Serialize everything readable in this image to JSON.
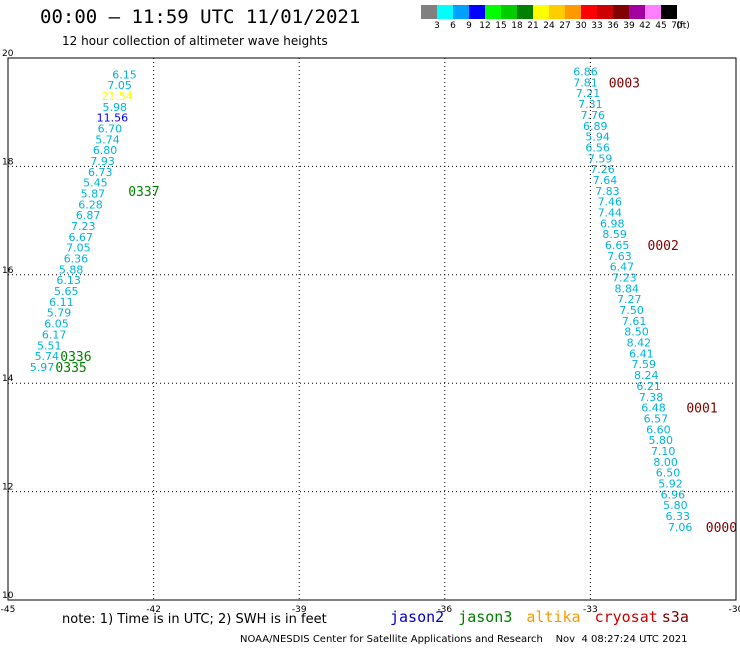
{
  "header": {
    "title": "00:00 – 11:59 UTC 11/01/2021",
    "subtitle": "12 hour collection of altimeter wave heights"
  },
  "legend": {
    "unit": "(ft)",
    "bins": [
      {
        "label": "3",
        "color": "#808080"
      },
      {
        "label": "6",
        "color": "#00ffff"
      },
      {
        "label": "9",
        "color": "#00a0ff"
      },
      {
        "label": "12",
        "color": "#0000ff"
      },
      {
        "label": "15",
        "color": "#00ff00"
      },
      {
        "label": "18",
        "color": "#00cc00"
      },
      {
        "label": "21",
        "color": "#008000"
      },
      {
        "label": "24",
        "color": "#ffff00"
      },
      {
        "label": "27",
        "color": "#ffcc00"
      },
      {
        "label": "30",
        "color": "#ff9900"
      },
      {
        "label": "33",
        "color": "#ff0000"
      },
      {
        "label": "36",
        "color": "#cc0000"
      },
      {
        "label": "39",
        "color": "#800000"
      },
      {
        "label": "42",
        "color": "#a000a0"
      },
      {
        "label": "45",
        "color": "#ff80ff"
      },
      {
        "label": "70",
        "color": "#000000"
      }
    ]
  },
  "footer": {
    "note": "note: 1) Time is in UTC; 2) SWH is in feet",
    "satellites": [
      {
        "name": "jason2",
        "color": "#0000cc"
      },
      {
        "name": "jason3",
        "color": "#008000"
      },
      {
        "name": "altika",
        "color": "#ff9900"
      },
      {
        "name": "cryosat",
        "color": "#cc0000"
      },
      {
        "name": "s3a",
        "color": "#800000"
      }
    ],
    "credit": "NOAA/NESDIS Center for Satellite Applications and Research    Nov  4 08:27:24 UTC 2021"
  },
  "chart_data": {
    "type": "scatter",
    "title": "12 hour collection of altimeter wave heights",
    "xlim": [
      -45,
      -30
    ],
    "ylim": [
      10,
      20
    ],
    "x_ticks": [
      "-45",
      "-42",
      "-39",
      "-36",
      "-33",
      "-30"
    ],
    "y_ticks": [
      "10",
      "12",
      "14",
      "16",
      "18",
      "20"
    ],
    "grid": true,
    "grid_color": "#000000",
    "series": [
      {
        "name": "jason3",
        "color": "#00b4dc",
        "points": [
          {
            "x": -42.6,
            "y": 19.7,
            "v": "6.15",
            "c": "#00b4dc"
          },
          {
            "x": -42.7,
            "y": 19.5,
            "v": "7.05",
            "c": "#00b4dc"
          },
          {
            "x": -42.75,
            "y": 19.3,
            "v": "21.54",
            "c": "#ffff00"
          },
          {
            "x": -42.8,
            "y": 19.1,
            "v": "5.98",
            "c": "#00b4dc"
          },
          {
            "x": -42.85,
            "y": 18.9,
            "v": "11.56",
            "c": "#0000ff"
          },
          {
            "x": -42.9,
            "y": 18.7,
            "v": "6.70",
            "c": "#00b4dc"
          },
          {
            "x": -42.95,
            "y": 18.5,
            "v": "5.74",
            "c": "#00b4dc"
          },
          {
            "x": -43.0,
            "y": 18.3,
            "v": "6.80",
            "c": "#00b4dc"
          },
          {
            "x": -43.05,
            "y": 18.1,
            "v": "7.93",
            "c": "#00b4dc"
          },
          {
            "x": -43.1,
            "y": 17.9,
            "v": "6.73",
            "c": "#00b4dc"
          },
          {
            "x": -43.2,
            "y": 17.7,
            "v": "5.45",
            "c": "#00b4dc"
          },
          {
            "x": -43.25,
            "y": 17.5,
            "v": "5.87",
            "c": "#00b4dc"
          },
          {
            "x": -43.3,
            "y": 17.3,
            "v": "6.28",
            "c": "#00b4dc"
          },
          {
            "x": -43.35,
            "y": 17.1,
            "v": "6.87",
            "c": "#00b4dc"
          },
          {
            "x": -43.45,
            "y": 16.9,
            "v": "7.23",
            "c": "#00b4dc"
          },
          {
            "x": -43.5,
            "y": 16.7,
            "v": "6.67",
            "c": "#00b4dc"
          },
          {
            "x": -43.55,
            "y": 16.5,
            "v": "7.05",
            "c": "#00b4dc"
          },
          {
            "x": -43.6,
            "y": 16.3,
            "v": "6.36",
            "c": "#00b4dc"
          },
          {
            "x": -43.7,
            "y": 16.1,
            "v": "5.88",
            "c": "#00b4dc"
          },
          {
            "x": -43.75,
            "y": 15.9,
            "v": "6.13",
            "c": "#00b4dc"
          },
          {
            "x": -43.8,
            "y": 15.7,
            "v": "5.65",
            "c": "#00b4dc"
          },
          {
            "x": -43.9,
            "y": 15.5,
            "v": "6.11",
            "c": "#00b4dc"
          },
          {
            "x": -43.95,
            "y": 15.3,
            "v": "5.79",
            "c": "#00b4dc"
          },
          {
            "x": -44.0,
            "y": 15.1,
            "v": "6.05",
            "c": "#00b4dc"
          },
          {
            "x": -44.05,
            "y": 14.9,
            "v": "6.17",
            "c": "#00b4dc"
          },
          {
            "x": -44.15,
            "y": 14.7,
            "v": "5.51",
            "c": "#00b4dc"
          },
          {
            "x": -44.2,
            "y": 14.5,
            "v": "5.74",
            "c": "#00b4dc"
          },
          {
            "x": -44.3,
            "y": 14.3,
            "v": "5.97",
            "c": "#00b4dc"
          }
        ]
      },
      {
        "name": "s3a",
        "color": "#00b4dc",
        "points": [
          {
            "x": -33.1,
            "y": 19.75,
            "v": "6.86",
            "c": "#00b4dc"
          },
          {
            "x": -33.1,
            "y": 19.55,
            "v": "7.81",
            "c": "#00b4dc"
          },
          {
            "x": -33.05,
            "y": 19.35,
            "v": "7.21",
            "c": "#00b4dc"
          },
          {
            "x": -33.0,
            "y": 19.15,
            "v": "7.31",
            "c": "#00b4dc"
          },
          {
            "x": -32.95,
            "y": 18.95,
            "v": "7.76",
            "c": "#00b4dc"
          },
          {
            "x": -32.9,
            "y": 18.75,
            "v": "6.89",
            "c": "#00b4dc"
          },
          {
            "x": -32.85,
            "y": 18.55,
            "v": "5.94",
            "c": "#00b4dc"
          },
          {
            "x": -32.85,
            "y": 18.35,
            "v": "6.56",
            "c": "#00b4dc"
          },
          {
            "x": -32.8,
            "y": 18.15,
            "v": "7.59",
            "c": "#00b4dc"
          },
          {
            "x": -32.75,
            "y": 17.95,
            "v": "7.26",
            "c": "#00b4dc"
          },
          {
            "x": -32.7,
            "y": 17.75,
            "v": "7.64",
            "c": "#00b4dc"
          },
          {
            "x": -32.65,
            "y": 17.55,
            "v": "7.83",
            "c": "#00b4dc"
          },
          {
            "x": -32.6,
            "y": 17.35,
            "v": "7.46",
            "c": "#00b4dc"
          },
          {
            "x": -32.6,
            "y": 17.15,
            "v": "7.44",
            "c": "#00b4dc"
          },
          {
            "x": -32.55,
            "y": 16.95,
            "v": "6.98",
            "c": "#00b4dc"
          },
          {
            "x": -32.5,
            "y": 16.75,
            "v": "8.59",
            "c": "#00b4dc"
          },
          {
            "x": -32.45,
            "y": 16.55,
            "v": "6.65",
            "c": "#00b4dc"
          },
          {
            "x": -32.4,
            "y": 16.35,
            "v": "7.63",
            "c": "#00b4dc"
          },
          {
            "x": -32.35,
            "y": 16.15,
            "v": "6.47",
            "c": "#00b4dc"
          },
          {
            "x": -32.3,
            "y": 15.95,
            "v": "7.23",
            "c": "#00b4dc"
          },
          {
            "x": -32.25,
            "y": 15.75,
            "v": "8.84",
            "c": "#00b4dc"
          },
          {
            "x": -32.2,
            "y": 15.55,
            "v": "7.27",
            "c": "#00b4dc"
          },
          {
            "x": -32.15,
            "y": 15.35,
            "v": "7.50",
            "c": "#00b4dc"
          },
          {
            "x": -32.1,
            "y": 15.15,
            "v": "7.61",
            "c": "#00b4dc"
          },
          {
            "x": -32.05,
            "y": 14.95,
            "v": "8.50",
            "c": "#00b4dc"
          },
          {
            "x": -32.0,
            "y": 14.75,
            "v": "8.42",
            "c": "#00b4dc"
          },
          {
            "x": -31.95,
            "y": 14.55,
            "v": "6.41",
            "c": "#00b4dc"
          },
          {
            "x": -31.9,
            "y": 14.35,
            "v": "7.59",
            "c": "#00b4dc"
          },
          {
            "x": -31.85,
            "y": 14.15,
            "v": "8.24",
            "c": "#00b4dc"
          },
          {
            "x": -31.8,
            "y": 13.95,
            "v": "6.21",
            "c": "#00b4dc"
          },
          {
            "x": -31.75,
            "y": 13.75,
            "v": "7.38",
            "c": "#00b4dc"
          },
          {
            "x": -31.7,
            "y": 13.55,
            "v": "6.48",
            "c": "#00b4dc"
          },
          {
            "x": -31.65,
            "y": 13.35,
            "v": "6.57",
            "c": "#00b4dc"
          },
          {
            "x": -31.6,
            "y": 13.15,
            "v": "6.60",
            "c": "#00b4dc"
          },
          {
            "x": -31.55,
            "y": 12.95,
            "v": "5.80",
            "c": "#00b4dc"
          },
          {
            "x": -31.5,
            "y": 12.75,
            "v": "7.10",
            "c": "#00b4dc"
          },
          {
            "x": -31.45,
            "y": 12.55,
            "v": "8.00",
            "c": "#00b4dc"
          },
          {
            "x": -31.4,
            "y": 12.35,
            "v": "6.50",
            "c": "#00b4dc"
          },
          {
            "x": -31.35,
            "y": 12.15,
            "v": "5.92",
            "c": "#00b4dc"
          },
          {
            "x": -31.3,
            "y": 11.95,
            "v": "6.96",
            "c": "#00b4dc"
          },
          {
            "x": -31.25,
            "y": 11.75,
            "v": "5.80",
            "c": "#00b4dc"
          },
          {
            "x": -31.2,
            "y": 11.55,
            "v": "6.33",
            "c": "#00b4dc"
          },
          {
            "x": -31.15,
            "y": 11.35,
            "v": "7.06",
            "c": "#00b4dc"
          }
        ]
      }
    ],
    "time_labels": [
      {
        "x": -32.3,
        "y": 19.55,
        "text": "0003",
        "color": "#800000"
      },
      {
        "x": -31.5,
        "y": 16.55,
        "text": "0002",
        "color": "#800000"
      },
      {
        "x": -30.7,
        "y": 13.55,
        "text": "0001",
        "color": "#800000"
      },
      {
        "x": -30.3,
        "y": 11.35,
        "text": "0000",
        "color": "#800000"
      },
      {
        "x": -42.2,
        "y": 17.55,
        "text": "0337",
        "color": "#008000"
      },
      {
        "x": -43.6,
        "y": 14.5,
        "text": "0336",
        "color": "#008000"
      },
      {
        "x": -43.7,
        "y": 14.3,
        "text": "0335",
        "color": "#008000"
      }
    ]
  }
}
